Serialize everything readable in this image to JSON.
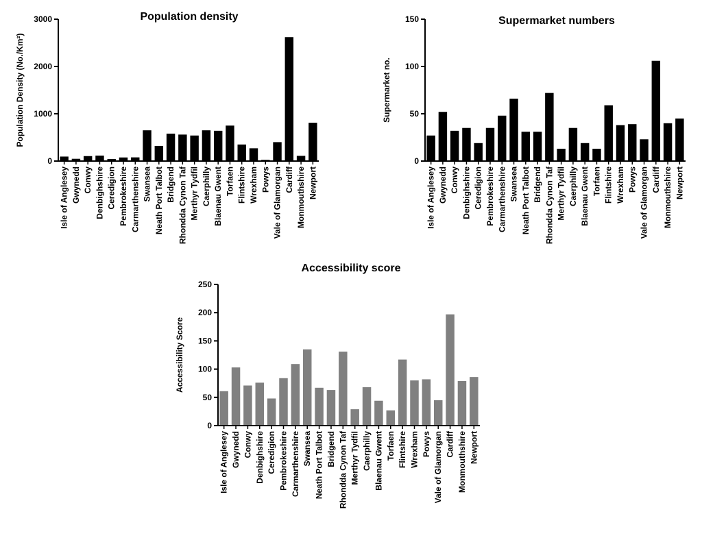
{
  "chart_data": [
    {
      "type": "bar",
      "title": "Population density",
      "y_label": "Population Density (No./Km²)",
      "categories": [
        "Isle of Anglesey",
        "Gwynedd",
        "Conwy",
        "Denbighshire",
        "Ceredigion",
        "Pembrokeshire",
        "Carmarthenshire",
        "Swansea",
        "Neath Port Talbot",
        "Bridgend",
        "Rhondda Cynon Taf",
        "Merthyr Tydfil",
        "Caerphilly",
        "Blaenau Gwent",
        "Torfaen",
        "Flintshire",
        "Wrexham",
        "Powys",
        "Vale of Glamorgan",
        "Cardiff",
        "Monmouthshire",
        "Newport"
      ],
      "values": [
        95,
        48,
        105,
        115,
        42,
        76,
        78,
        650,
        320,
        580,
        560,
        540,
        650,
        640,
        750,
        350,
        270,
        26,
        400,
        2620,
        110,
        810
      ],
      "color": "#000000",
      "ylim": [
        0,
        3000
      ],
      "yticks": [
        0,
        1000,
        2000,
        3000
      ]
    },
    {
      "type": "bar",
      "title": "Supermarket numbers",
      "y_label": "Supermarket no.",
      "categories": [
        "Isle of Anglesey",
        "Gwynedd",
        "Conwy",
        "Denbighshire",
        "Ceredigion",
        "Pembrokeshire",
        "Carmarthenshire",
        "Swansea",
        "Neath Port Talbot",
        "Bridgend",
        "Rhondda Cynon Taf",
        "Merthyr Tydfil",
        "Caerphilly",
        "Blaenau Gwent",
        "Torfaen",
        "Flintshire",
        "Wrexham",
        "Powys",
        "Vale of Glamorgan",
        "Cardiff",
        "Monmouthshire",
        "Newport"
      ],
      "values": [
        27,
        52,
        32,
        35,
        19,
        35,
        48,
        66,
        31,
        31,
        72,
        13,
        35,
        19,
        13,
        59,
        38,
        39,
        23,
        106,
        40,
        45
      ],
      "color": "#000000",
      "ylim": [
        0,
        150
      ],
      "yticks": [
        0,
        50,
        100,
        150
      ]
    },
    {
      "type": "bar",
      "title": "Accessibility score",
      "y_label": "Accessibility Score",
      "categories": [
        "Isle of Anglesey",
        "Gwynedd",
        "Conwy",
        "Denbighshire",
        "Ceredigion",
        "Pembrokeshire",
        "Carmarthenshire",
        "Swansea",
        "Neath Port Talbot",
        "Bridgend",
        "Rhondda Cynon Taf",
        "Merthyr Tydfil",
        "Caerphilly",
        "Blaenau Gwent",
        "Torfaen",
        "Flintshire",
        "Wrexham",
        "Powys",
        "Vale of Glamorgan",
        "Cardiff",
        "Monmouthshire",
        "Newport"
      ],
      "values": [
        61,
        103,
        71,
        76,
        48,
        84,
        109,
        135,
        67,
        63,
        131,
        29,
        68,
        44,
        27,
        117,
        80,
        82,
        45,
        197,
        79,
        86
      ],
      "color": "#808080",
      "ylim": [
        0,
        250
      ],
      "yticks": [
        0,
        50,
        100,
        150,
        200,
        250
      ]
    }
  ]
}
